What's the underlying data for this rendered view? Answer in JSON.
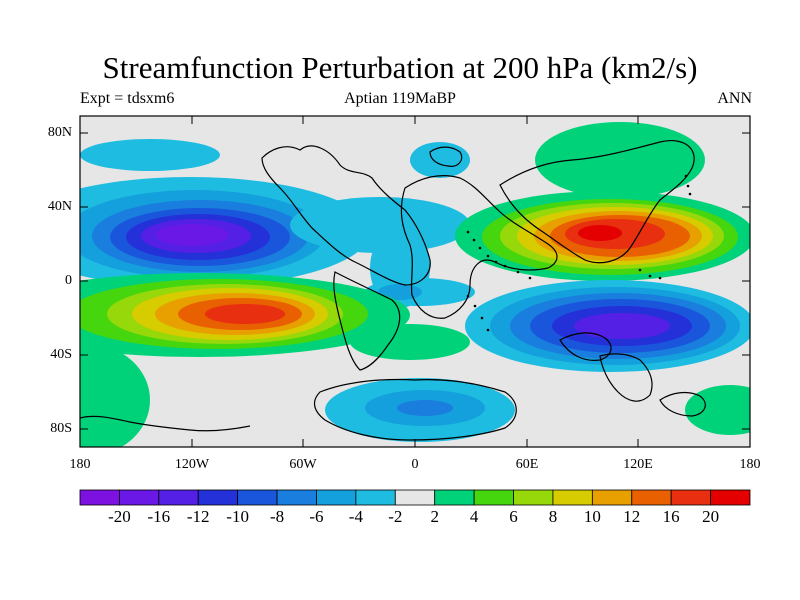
{
  "title": "Streamfunction Perturbation at 200 hPa (km2/s)",
  "subtitle_left": "Expt = tdsxm6",
  "subtitle_center": "Aptian   119MaBP",
  "subtitle_right": "ANN",
  "latitude_labels": [
    "80N",
    "40N",
    "0",
    "40S",
    "80S"
  ],
  "longitude_labels": [
    "180",
    "120W",
    "60W",
    "0",
    "60E",
    "120E",
    "180"
  ],
  "colorbar": {
    "labels": [
      "-20",
      "-16",
      "-12",
      "-10",
      "-8",
      "-6",
      "-4",
      "-2",
      "2",
      "4",
      "6",
      "8",
      "10",
      "12",
      "16",
      "20"
    ],
    "colors": [
      "#7d12e0",
      "#6a18e6",
      "#5520e6",
      "#2430d8",
      "#1a56dc",
      "#1a7ede",
      "#14a0dc",
      "#1ebce0",
      "#e6e6e6",
      "#00d27a",
      "#46d60e",
      "#96d80a",
      "#d6cc00",
      "#e8a000",
      "#e86000",
      "#e83010",
      "#e40000"
    ]
  },
  "map": {
    "projection": "cylindrical equidistant",
    "longitude_range": [
      -180,
      180
    ],
    "latitude_range": [
      -90,
      90
    ]
  }
}
